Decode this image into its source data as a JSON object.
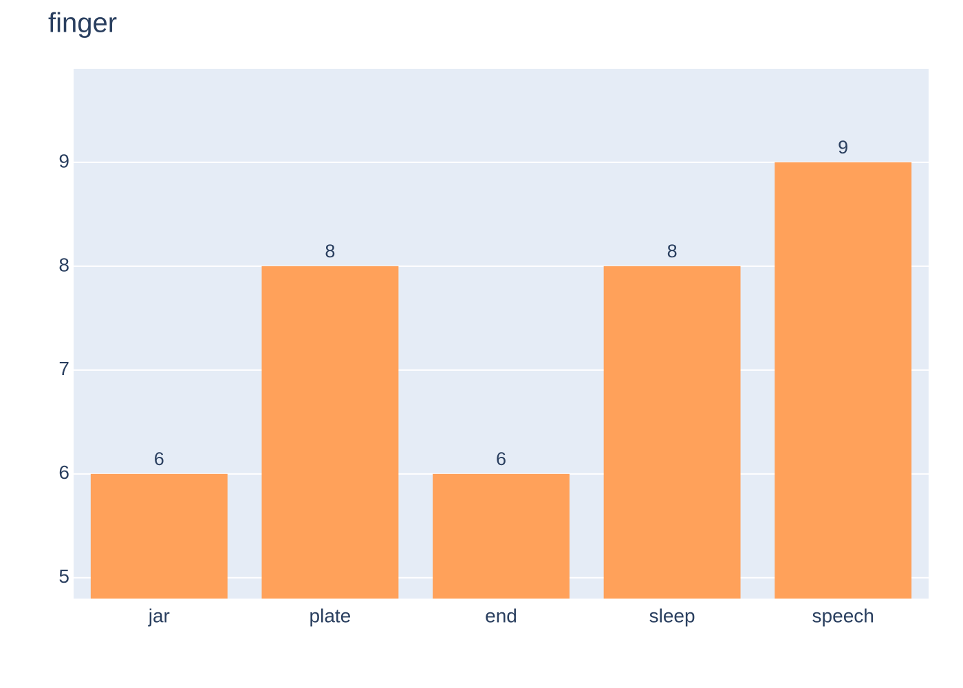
{
  "chart_data": {
    "type": "bar",
    "title": "finger",
    "categories": [
      "jar",
      "plate",
      "end",
      "sleep",
      "speech"
    ],
    "values": [
      6,
      8,
      6,
      8,
      9
    ],
    "color": "#ffa15a",
    "ylim": [
      4.8,
      9.9
    ],
    "yticks": [
      5,
      6,
      7,
      8,
      9
    ],
    "grid": true
  }
}
